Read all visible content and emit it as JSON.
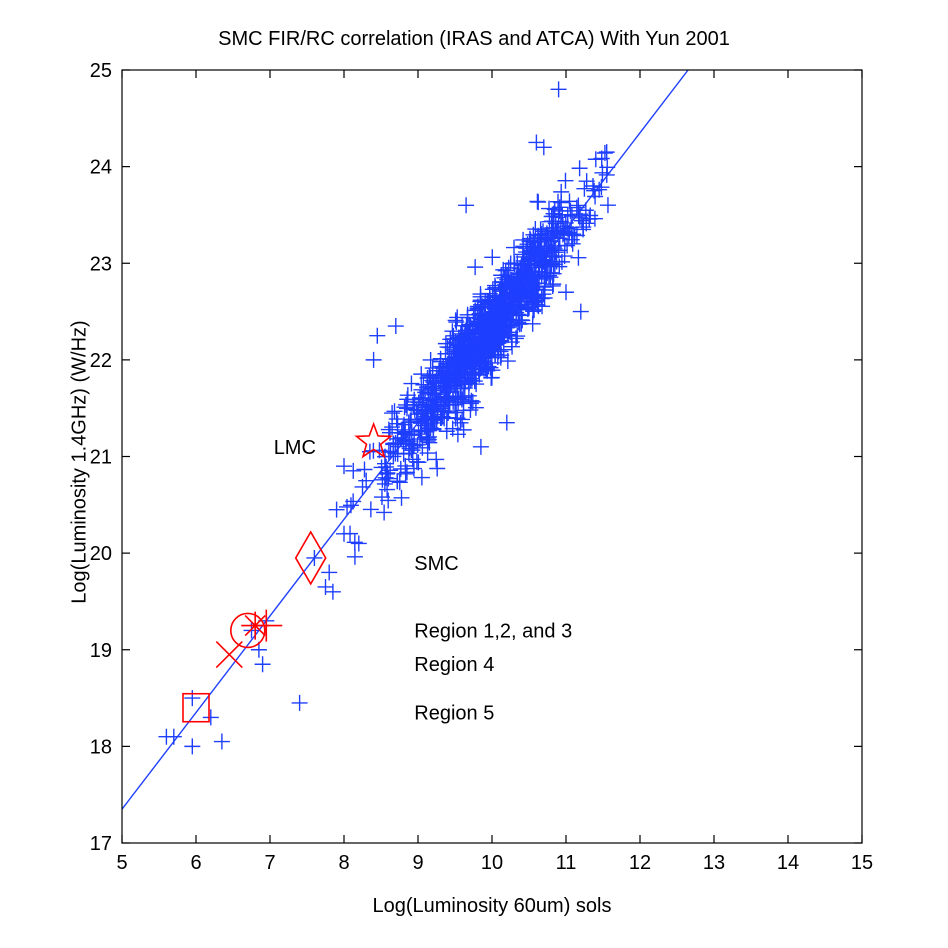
{
  "chart_data": {
    "type": "scatter",
    "title": "SMC FIR/RC correlation (IRAS and ATCA) With Yun 2001",
    "xlabel": "Log(Luminosity 60um) sols",
    "ylabel": "Log(Luminosity 1.4GHz) (W/Hz)",
    "xlim": [
      5,
      15
    ],
    "ylim": [
      17,
      25
    ],
    "xticks": [
      "5",
      "6",
      "7",
      "8",
      "9",
      "10",
      "11",
      "12",
      "13",
      "14",
      "15"
    ],
    "yticks": [
      "17",
      "18",
      "19",
      "20",
      "21",
      "22",
      "23",
      "24",
      "25"
    ],
    "grid": false,
    "colors": {
      "galaxies": "#1f3fff",
      "fit": "#1f3fff",
      "markers": "#ff0000"
    },
    "fit_line": {
      "slope": 1.0,
      "intercept": 12.35,
      "x_range": [
        5,
        12.65
      ]
    },
    "main_cloud": {
      "x_range": [
        8.0,
        11.6
      ],
      "center": [
        9.9,
        22.25
      ],
      "count": 1150,
      "scatter": 0.22
    },
    "outliers": [
      {
        "x": 10.9,
        "y": 24.8
      },
      {
        "x": 10.6,
        "y": 24.25
      },
      {
        "x": 10.7,
        "y": 24.2
      },
      {
        "x": 11.55,
        "y": 24.15
      },
      {
        "x": 9.65,
        "y": 23.6
      },
      {
        "x": 11.2,
        "y": 22.5
      },
      {
        "x": 11.0,
        "y": 22.7
      },
      {
        "x": 8.7,
        "y": 22.35
      },
      {
        "x": 8.45,
        "y": 22.25
      },
      {
        "x": 8.4,
        "y": 22.0
      },
      {
        "x": 8.65,
        "y": 21.45
      },
      {
        "x": 8.35,
        "y": 21.05
      },
      {
        "x": 8.3,
        "y": 20.75
      },
      {
        "x": 9.85,
        "y": 21.1
      },
      {
        "x": 10.2,
        "y": 21.35
      },
      {
        "x": 9.55,
        "y": 21.6
      },
      {
        "x": 8.0,
        "y": 20.9
      },
      {
        "x": 7.9,
        "y": 20.45
      },
      {
        "x": 7.6,
        "y": 19.95
      },
      {
        "x": 7.8,
        "y": 19.8
      },
      {
        "x": 7.75,
        "y": 19.65
      },
      {
        "x": 7.85,
        "y": 19.6
      },
      {
        "x": 8.0,
        "y": 20.2
      },
      {
        "x": 8.2,
        "y": 20.1
      },
      {
        "x": 7.4,
        "y": 18.45
      },
      {
        "x": 6.9,
        "y": 18.85
      },
      {
        "x": 6.85,
        "y": 19.0
      },
      {
        "x": 6.75,
        "y": 19.2
      },
      {
        "x": 6.95,
        "y": 19.3
      },
      {
        "x": 6.2,
        "y": 18.3
      },
      {
        "x": 5.95,
        "y": 18.5
      },
      {
        "x": 6.35,
        "y": 18.05
      },
      {
        "x": 5.95,
        "y": 18.0
      },
      {
        "x": 5.6,
        "y": 18.1
      },
      {
        "x": 5.7,
        "y": 18.1
      }
    ],
    "markers": [
      {
        "label": "LMC",
        "shape": "star",
        "x": 8.4,
        "y": 21.15
      },
      {
        "label": "SMC",
        "shape": "diamond",
        "x": 7.55,
        "y": 19.95
      },
      {
        "label": "Region 1,2, and 3",
        "shape": "circle",
        "x": 6.7,
        "y": 19.2
      },
      {
        "label": "Region 4",
        "shape": "x",
        "x": 6.45,
        "y": 18.95
      },
      {
        "label": "Region 5",
        "shape": "square",
        "x": 6.0,
        "y": 18.4
      },
      {
        "label": "",
        "shape": "asterisk",
        "x": 6.8,
        "y": 19.25
      },
      {
        "label": "",
        "shape": "plus",
        "x": 6.95,
        "y": 19.25
      }
    ],
    "annotations": [
      {
        "text": "LMC",
        "x": 7.05,
        "y": 21.1
      },
      {
        "text": "SMC",
        "x": 8.95,
        "y": 19.9
      },
      {
        "text": "Region 1,2, and 3",
        "x": 8.95,
        "y": 19.2
      },
      {
        "text": "Region 4",
        "x": 8.95,
        "y": 18.85
      },
      {
        "text": "Region 5",
        "x": 8.95,
        "y": 18.35
      }
    ]
  }
}
